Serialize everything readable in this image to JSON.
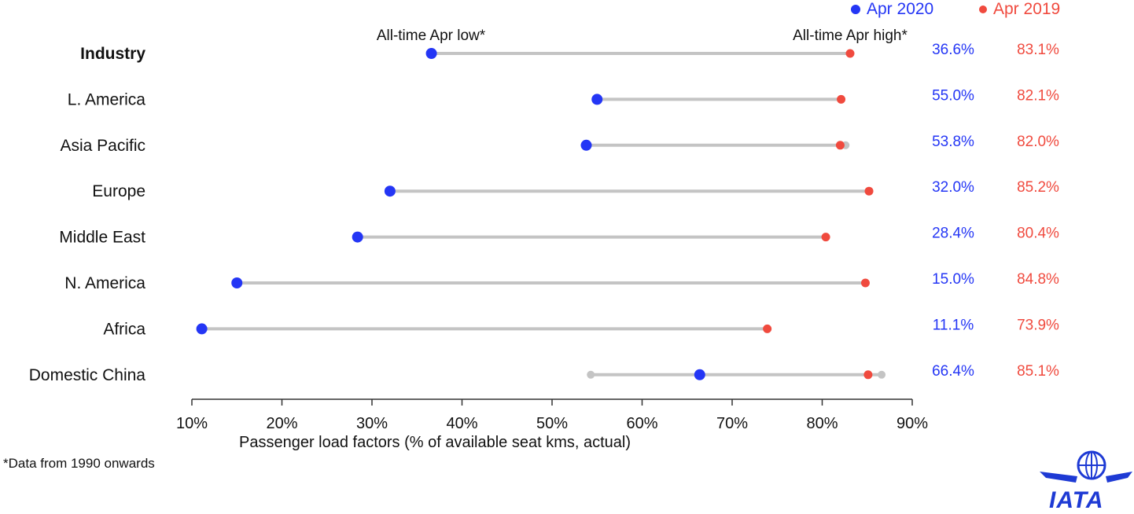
{
  "legend": {
    "apr2020": "Apr 2020",
    "apr2019": "Apr 2019"
  },
  "annotations": {
    "low": "All-time Apr low*",
    "high": "All-time Apr high*"
  },
  "footnote": "*Data from 1990 onwards",
  "logo": {
    "text": "IATA"
  },
  "colors": {
    "apr2020": "#2436f5",
    "apr2019": "#f04a3e",
    "range": "#c4c4c4",
    "axis": "#333333"
  },
  "chart_data": {
    "type": "dumbbell",
    "xlabel": "Passenger  load factors (% of available seat  kms, actual)",
    "xlim": [
      10,
      90
    ],
    "xticks": [
      10,
      20,
      30,
      40,
      50,
      60,
      70,
      80,
      90
    ],
    "xtick_labels": [
      "10%",
      "20%",
      "30%",
      "40%",
      "50%",
      "60%",
      "70%",
      "80%",
      "90%"
    ],
    "categories": [
      "Industry",
      "L. America",
      "Asia Pacific",
      "Europe",
      "Middle East",
      "N. America",
      "Africa",
      "Domestic China"
    ],
    "series": [
      {
        "name": "Apr 2020",
        "values": [
          36.6,
          55.0,
          53.8,
          32.0,
          28.4,
          15.0,
          11.1,
          66.4
        ],
        "labels": [
          "36.6%",
          "55.0%",
          "53.8%",
          "32.0%",
          "28.4%",
          "15.0%",
          "11.1%",
          "66.4%"
        ]
      },
      {
        "name": "Apr 2019",
        "values": [
          83.1,
          82.1,
          82.0,
          85.2,
          80.4,
          84.8,
          73.9,
          85.1
        ],
        "labels": [
          "83.1%",
          "82.1%",
          "82.0%",
          "85.2%",
          "80.4%",
          "84.8%",
          "73.9%",
          "85.1%"
        ]
      }
    ],
    "all_time_low": [
      36.6,
      55.0,
      53.8,
      32.0,
      28.4,
      15.0,
      11.1,
      54.3
    ],
    "all_time_high": [
      83.1,
      82.1,
      82.6,
      85.2,
      80.4,
      84.8,
      73.9,
      86.6
    ]
  }
}
